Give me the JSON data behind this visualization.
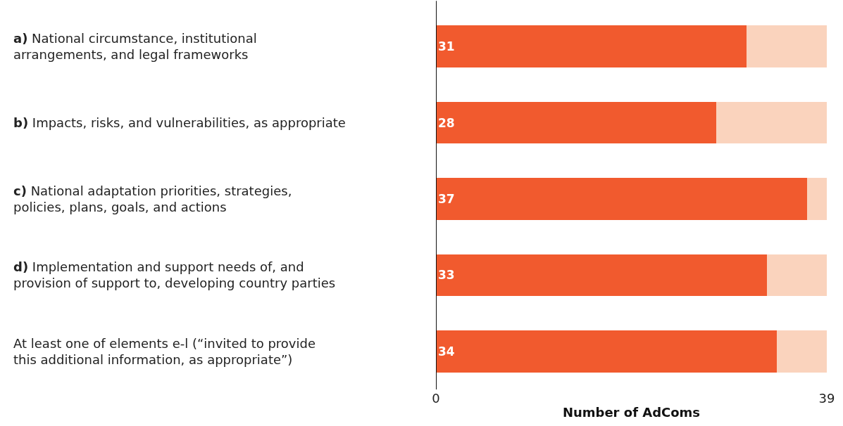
{
  "chart_data": {
    "type": "bar",
    "orientation": "horizontal",
    "stacked": true,
    "categories": [
      "a) National circumstance, institutional\narrangements, and legal frameworks",
      "b) Impacts, risks, and vulnerabilities, as appropriate",
      "c) National adaptation priorities, strategies,\npolicies, plans, goals, and actions",
      "d) Implementation and support needs of, and\nprovision of support to, developing country parties",
      "At least one of elements e-l (“invited to provide\nthis additional information, as appropriate”)"
    ],
    "series": [
      {
        "color": "#f15a2e",
        "values": [
          31,
          28,
          37,
          33,
          34
        ],
        "value_labels": [
          "31",
          "28",
          "37",
          "33",
          "34"
        ]
      },
      {
        "color": "#fad3bd",
        "values": [
          8,
          11,
          2,
          6,
          5
        ]
      }
    ],
    "xlabel": "Number of AdComs",
    "xlim": [
      0,
      39
    ],
    "xticks": [
      0,
      39
    ]
  }
}
